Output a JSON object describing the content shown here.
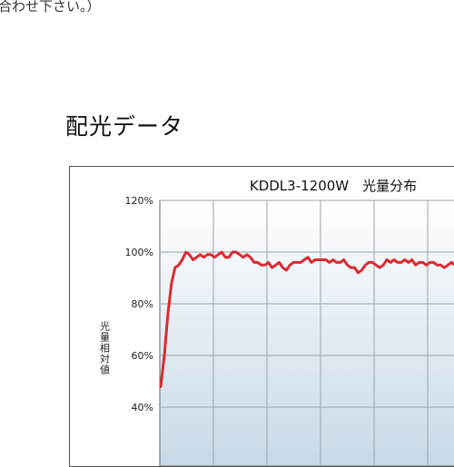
{
  "page": {
    "top_note": "合わせ下さい。）",
    "heading": "配光データ"
  },
  "chart_data": {
    "type": "line",
    "title": "KDDL3-1200W　光量分布",
    "ylabel": "光量相対値",
    "xlabel": "",
    "ylim": [
      40,
      120
    ],
    "yticks": [
      "120%",
      "100%",
      "80%",
      "60%",
      "40%"
    ],
    "ytick_values": [
      120,
      100,
      80,
      60,
      40
    ],
    "x_gridlines": 6,
    "grid": true,
    "line_color": "#dd2a2f",
    "background_gradient": [
      "#ffffff",
      "#c8d9e7"
    ],
    "series": [
      {
        "values": [
          48,
          60,
          76,
          88,
          94,
          95,
          97,
          100,
          99,
          97,
          98,
          99,
          98,
          99,
          99,
          98,
          99,
          100,
          98,
          98,
          100,
          100,
          99,
          98,
          99,
          98,
          96,
          96,
          95,
          95,
          96,
          94,
          95,
          96,
          94,
          93,
          95,
          96,
          96,
          96,
          97,
          98,
          96,
          97,
          97,
          97,
          97,
          96,
          97,
          96,
          96,
          97,
          95,
          94,
          94,
          92,
          93,
          95,
          96,
          96,
          95,
          94,
          95,
          97,
          96,
          97,
          96,
          96,
          97,
          96,
          97,
          95,
          96,
          96,
          95,
          96,
          96,
          95,
          95,
          94,
          95,
          96,
          95,
          93,
          95,
          96,
          96
        ]
      }
    ]
  }
}
